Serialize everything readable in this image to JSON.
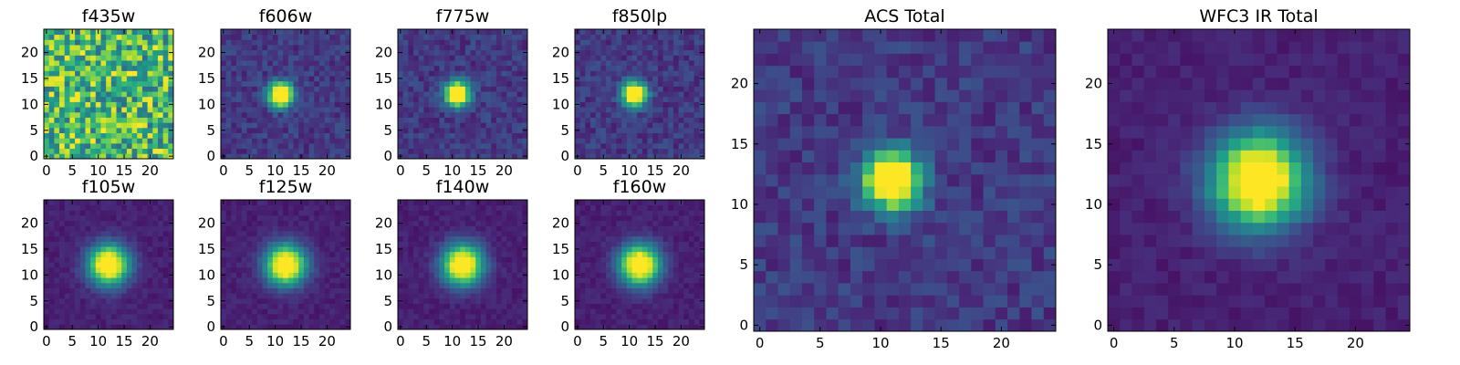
{
  "chart_data": [
    {
      "type": "heatmap",
      "title": "f435w",
      "profile": "noise",
      "xlim": [
        -0.5,
        24.5
      ],
      "ylim": [
        -0.5,
        24.5
      ],
      "xticks": [
        "0",
        "5",
        "10",
        "15",
        "20"
      ],
      "yticks": [
        "0",
        "5",
        "10",
        "15",
        "20"
      ],
      "source": {
        "x": 12,
        "y": 12
      },
      "colormap": "viridis"
    },
    {
      "type": "heatmap",
      "title": "f606w",
      "profile": "compact",
      "xlim": [
        -0.5,
        24.5
      ],
      "ylim": [
        -0.5,
        24.5
      ],
      "xticks": [
        "0",
        "5",
        "10",
        "15",
        "20"
      ],
      "yticks": [
        "0",
        "5",
        "10",
        "15",
        "20"
      ],
      "source": {
        "x": 11,
        "y": 12
      },
      "colormap": "viridis"
    },
    {
      "type": "heatmap",
      "title": "f775w",
      "profile": "compact",
      "xlim": [
        -0.5,
        24.5
      ],
      "ylim": [
        -0.5,
        24.5
      ],
      "xticks": [
        "0",
        "5",
        "10",
        "15",
        "20"
      ],
      "yticks": [
        "0",
        "5",
        "10",
        "15",
        "20"
      ],
      "source": {
        "x": 11,
        "y": 12
      },
      "colormap": "viridis"
    },
    {
      "type": "heatmap",
      "title": "f850lp",
      "profile": "compact",
      "xlim": [
        -0.5,
        24.5
      ],
      "ylim": [
        -0.5,
        24.5
      ],
      "xticks": [
        "0",
        "5",
        "10",
        "15",
        "20"
      ],
      "yticks": [
        "0",
        "5",
        "10",
        "15",
        "20"
      ],
      "source": {
        "x": 11,
        "y": 12
      },
      "colormap": "viridis"
    },
    {
      "type": "heatmap",
      "title": "f105w",
      "profile": "extended",
      "xlim": [
        -0.5,
        24.5
      ],
      "ylim": [
        -0.5,
        24.5
      ],
      "xticks": [
        "0",
        "5",
        "10",
        "15",
        "20"
      ],
      "yticks": [
        "0",
        "5",
        "10",
        "15",
        "20"
      ],
      "source": {
        "x": 12,
        "y": 12
      },
      "colormap": "viridis"
    },
    {
      "type": "heatmap",
      "title": "f125w",
      "profile": "extended",
      "xlim": [
        -0.5,
        24.5
      ],
      "ylim": [
        -0.5,
        24.5
      ],
      "xticks": [
        "0",
        "5",
        "10",
        "15",
        "20"
      ],
      "yticks": [
        "0",
        "5",
        "10",
        "15",
        "20"
      ],
      "source": {
        "x": 12,
        "y": 12
      },
      "colormap": "viridis"
    },
    {
      "type": "heatmap",
      "title": "f140w",
      "profile": "extended",
      "xlim": [
        -0.5,
        24.5
      ],
      "ylim": [
        -0.5,
        24.5
      ],
      "xticks": [
        "0",
        "5",
        "10",
        "15",
        "20"
      ],
      "yticks": [
        "0",
        "5",
        "10",
        "15",
        "20"
      ],
      "source": {
        "x": 12,
        "y": 12
      },
      "colormap": "viridis"
    },
    {
      "type": "heatmap",
      "title": "f160w",
      "profile": "extended",
      "xlim": [
        -0.5,
        24.5
      ],
      "ylim": [
        -0.5,
        24.5
      ],
      "xticks": [
        "0",
        "5",
        "10",
        "15",
        "20"
      ],
      "yticks": [
        "0",
        "5",
        "10",
        "15",
        "20"
      ],
      "source": {
        "x": 12,
        "y": 12
      },
      "colormap": "viridis"
    },
    {
      "type": "heatmap",
      "title": "ACS Total",
      "profile": "compact",
      "xlim": [
        -0.5,
        24.5
      ],
      "ylim": [
        -0.5,
        24.5
      ],
      "xticks": [
        "0",
        "5",
        "10",
        "15",
        "20"
      ],
      "yticks": [
        "0",
        "5",
        "10",
        "15",
        "20"
      ],
      "source": {
        "x": 11,
        "y": 12
      },
      "colormap": "viridis"
    },
    {
      "type": "heatmap",
      "title": "WFC3 IR Total",
      "profile": "extended",
      "xlim": [
        -0.5,
        24.5
      ],
      "ylim": [
        -0.5,
        24.5
      ],
      "xticks": [
        "0",
        "5",
        "10",
        "15",
        "20"
      ],
      "yticks": [
        "0",
        "5",
        "10",
        "15",
        "20"
      ],
      "source": {
        "x": 12,
        "y": 12
      },
      "colormap": "viridis"
    }
  ]
}
